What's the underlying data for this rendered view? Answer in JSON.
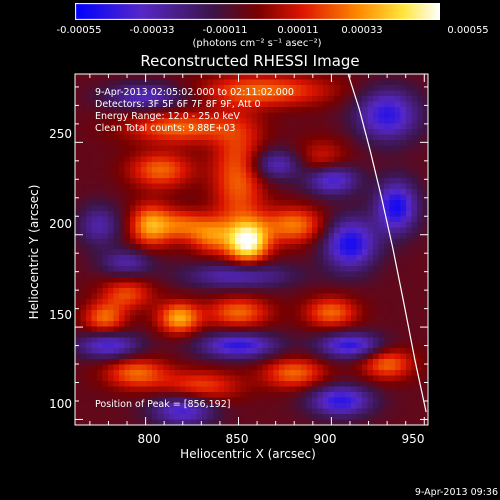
{
  "colorbar": {
    "ticks": [
      "-0.00055",
      "-0.00033",
      "-0.00011",
      "0.00011",
      "0.00033",
      "0.00055"
    ],
    "units": "(photons cm⁻² s⁻¹ asec⁻²)"
  },
  "annotations": {
    "time": "9-Apr-2013 02:05:02.000 to 02:11:02.000",
    "detectors": "Detectors: 3F 5F 6F 7F 8F 9F, Att 0",
    "energy": "Energy Range: 12.0 - 25.0 keV",
    "clean": "Clean     Total counts: 9.88E+03",
    "peak": "Position of Peak = [856,192]"
  },
  "footer": {
    "stamp": "9-Apr-2013 09:36"
  },
  "chart_data": {
    "type": "heatmap",
    "title": "Reconstructed RHESSI Image",
    "xlabel": "Heliocentric X (arcsec)",
    "ylabel": "Heliocentric Y (arcsec)",
    "xlim": [
      762,
      952
    ],
    "ylim": [
      97,
      287
    ],
    "xticks": [
      800,
      850,
      900,
      950
    ],
    "yticks": [
      100,
      150,
      200,
      250
    ],
    "clim": [
      -0.00055,
      0.00055
    ],
    "colormap": "blue-purple-red-orange-yellow-white",
    "peak": [
      856,
      192
    ],
    "limb_arc": {
      "x": [
        909,
        915,
        921,
        927,
        933,
        939,
        945,
        951
      ],
      "y": [
        287,
        268,
        245,
        220,
        193,
        163,
        132,
        104
      ]
    },
    "blobs": [
      {
        "x": 855,
        "y": 196,
        "amp": 0.00055,
        "sx": 8,
        "sy": 8
      },
      {
        "x": 835,
        "y": 200,
        "amp": 0.0003,
        "sx": 8,
        "sy": 7
      },
      {
        "x": 803,
        "y": 205,
        "amp": 0.0004,
        "sx": 8,
        "sy": 8
      },
      {
        "x": 820,
        "y": 205,
        "amp": 0.00025,
        "sx": 8,
        "sy": 6
      },
      {
        "x": 880,
        "y": 205,
        "amp": 0.00033,
        "sx": 12,
        "sy": 7
      },
      {
        "x": 850,
        "y": 232,
        "amp": 0.0003,
        "sx": 10,
        "sy": 22
      },
      {
        "x": 895,
        "y": 240,
        "amp": 0.0002,
        "sx": 10,
        "sy": 8
      },
      {
        "x": 808,
        "y": 235,
        "amp": 0.0003,
        "sx": 12,
        "sy": 7
      },
      {
        "x": 818,
        "y": 258,
        "amp": 0.0003,
        "sx": 20,
        "sy": 6
      },
      {
        "x": 865,
        "y": 278,
        "amp": 0.0003,
        "sx": 25,
        "sy": 6
      },
      {
        "x": 818,
        "y": 155,
        "amp": 0.0004,
        "sx": 8,
        "sy": 6
      },
      {
        "x": 778,
        "y": 155,
        "amp": 0.0003,
        "sx": 8,
        "sy": 6
      },
      {
        "x": 850,
        "y": 158,
        "amp": 0.0003,
        "sx": 12,
        "sy": 6
      },
      {
        "x": 900,
        "y": 158,
        "amp": 0.0003,
        "sx": 10,
        "sy": 6
      },
      {
        "x": 790,
        "y": 168,
        "amp": 0.00025,
        "sx": 10,
        "sy": 6
      },
      {
        "x": 795,
        "y": 125,
        "amp": 0.0003,
        "sx": 12,
        "sy": 6
      },
      {
        "x": 830,
        "y": 118,
        "amp": 0.00025,
        "sx": 15,
        "sy": 6
      },
      {
        "x": 880,
        "y": 125,
        "amp": 0.0003,
        "sx": 12,
        "sy": 6
      },
      {
        "x": 930,
        "y": 130,
        "amp": 0.0003,
        "sx": 10,
        "sy": 6
      },
      {
        "x": 870,
        "y": 238,
        "amp": -0.0003,
        "sx": 10,
        "sy": 6
      },
      {
        "x": 900,
        "y": 230,
        "amp": -0.0004,
        "sx": 10,
        "sy": 6
      },
      {
        "x": 910,
        "y": 195,
        "amp": -0.00045,
        "sx": 10,
        "sy": 10
      },
      {
        "x": 935,
        "y": 215,
        "amp": -0.00045,
        "sx": 8,
        "sy": 10
      },
      {
        "x": 800,
        "y": 275,
        "amp": -0.0003,
        "sx": 15,
        "sy": 5
      },
      {
        "x": 790,
        "y": 185,
        "amp": -0.00025,
        "sx": 10,
        "sy": 5
      },
      {
        "x": 780,
        "y": 140,
        "amp": -0.00035,
        "sx": 12,
        "sy": 5
      },
      {
        "x": 850,
        "y": 140,
        "amp": -0.0004,
        "sx": 15,
        "sy": 5
      },
      {
        "x": 910,
        "y": 140,
        "amp": -0.0004,
        "sx": 12,
        "sy": 5
      },
      {
        "x": 820,
        "y": 105,
        "amp": -0.00035,
        "sx": 12,
        "sy": 6
      },
      {
        "x": 905,
        "y": 110,
        "amp": -0.0004,
        "sx": 12,
        "sy": 6
      },
      {
        "x": 850,
        "y": 178,
        "amp": -0.0003,
        "sx": 20,
        "sy": 5
      },
      {
        "x": 775,
        "y": 205,
        "amp": -0.00025,
        "sx": 8,
        "sy": 8
      },
      {
        "x": 930,
        "y": 265,
        "amp": -0.0004,
        "sx": 12,
        "sy": 10
      }
    ]
  }
}
